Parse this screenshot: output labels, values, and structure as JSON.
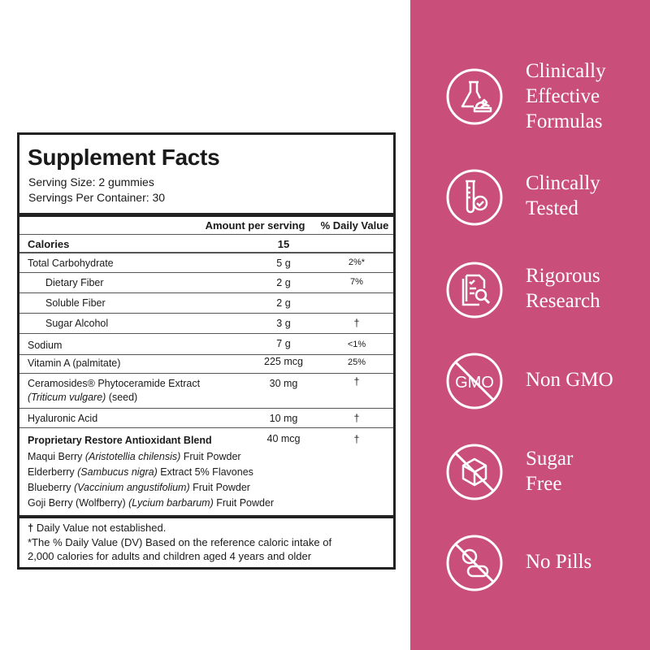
{
  "facts": {
    "title": "Supplement Facts",
    "serving_size": "Serving Size: 2 gummies",
    "servings_per_container": "Servings Per Container: 30",
    "col_amount": "Amount per serving",
    "col_dv": "% Daily Value",
    "rows": [
      {
        "name": "Calories",
        "amount": "15",
        "dv": ""
      },
      {
        "name": "Total Carbohydrate",
        "amount": "5 g",
        "dv": "2%*"
      },
      {
        "name": "Dietary Fiber",
        "amount": "2 g",
        "dv": "7%"
      },
      {
        "name": "Soluble Fiber",
        "amount": "2 g",
        "dv": ""
      },
      {
        "name": "Sugar Alcohol",
        "amount": "3 g",
        "dv": "†"
      },
      {
        "name": "Sodium",
        "amount": "7 g",
        "dv": "<1%"
      },
      {
        "name": "Vitamin A (palmitate)",
        "amount": "225 mcg",
        "dv": "25%"
      },
      {
        "name": "Ceramosides® Phytoceramide Extract",
        "sub_italic": "(Triticum vulgare)",
        "sub": " (seed)",
        "amount": "30 mg",
        "dv": "†"
      },
      {
        "name": "Hyaluronic Acid",
        "amount": "10 mg",
        "dv": "†"
      }
    ],
    "blend": {
      "name": "Proprietary Restore Antioxidant Blend",
      "amount": "40 mcg",
      "dv": "†",
      "items": [
        {
          "pre": "Maqui Berry ",
          "latin": "(Aristotellia chilensis)",
          "post": " Fruit Powder"
        },
        {
          "pre": "Elderberry ",
          "latin": "(Sambucus nigra)",
          "post": " Extract 5% Flavones"
        },
        {
          "pre": "Blueberry ",
          "latin": "(Vaccinium angustifolium)",
          "post": " Fruit Powder"
        },
        {
          "pre": "Goji Berry (Wolfberry) ",
          "latin": "(Lycium barbarum)",
          "post": " Fruit Powder"
        }
      ]
    },
    "footnote_dagger_symbol": "†",
    "footnote_dagger": "Daily Value not established.",
    "footnote_star_1": "*The % Daily Value (DV) Based on the reference caloric intake of",
    "footnote_star_2": "2,000 calories for adults and children aged 4 years and older"
  },
  "panel": {
    "background": "#c94e7a",
    "features": [
      {
        "icon": "flask-leaf-icon",
        "line1": "Clinically",
        "line2": "Effective",
        "line3": "Formulas"
      },
      {
        "icon": "test-tube-check-icon",
        "line1": "Clincally",
        "line2": "Tested"
      },
      {
        "icon": "document-search-icon",
        "line1": "Rigorous",
        "line2": "Research"
      },
      {
        "icon": "no-gmo-icon",
        "line1": "Non GMO"
      },
      {
        "icon": "no-sugar-cube-icon",
        "line1": "Sugar",
        "line2": "Free"
      },
      {
        "icon": "no-pills-icon",
        "line1": "No Pills"
      }
    ]
  }
}
